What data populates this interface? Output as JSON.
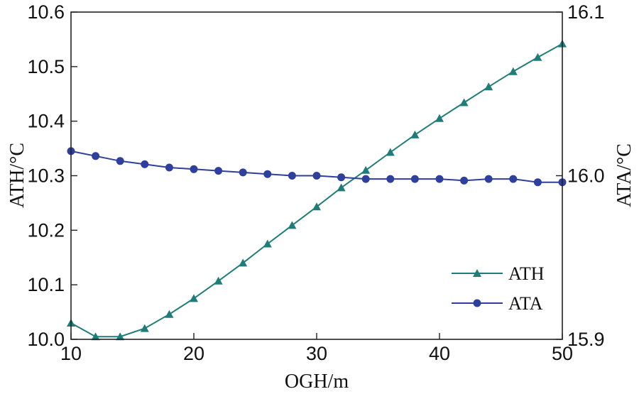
{
  "chart_data": {
    "type": "line",
    "xlabel": "OGH/m",
    "ylabel_left": "ATH/°C",
    "ylabel_right": "ATA/°C",
    "xlim": [
      10,
      50
    ],
    "ylim_left": [
      10.0,
      10.6
    ],
    "ylim_right": [
      15.9,
      16.1
    ],
    "x_ticks": [
      "10",
      "20",
      "30",
      "40",
      "50"
    ],
    "y_left_ticks": [
      "10.0",
      "10.1",
      "10.2",
      "10.3",
      "10.4",
      "10.5",
      "10.6"
    ],
    "y_right_ticks": [
      "15.9",
      "16.0",
      "16.1"
    ],
    "grid": false,
    "legend_position": "lower-right",
    "series": [
      {
        "name": "ATH",
        "axis": "left",
        "marker": "triangle",
        "color": "#1e7d78",
        "x": [
          10,
          12,
          14,
          16,
          18,
          20,
          22,
          24,
          26,
          28,
          30,
          32,
          34,
          36,
          38,
          40,
          42,
          44,
          46,
          48,
          50
        ],
        "values": [
          10.03,
          10.005,
          10.005,
          10.02,
          10.046,
          10.075,
          10.107,
          10.14,
          10.175,
          10.209,
          10.243,
          10.278,
          10.31,
          10.343,
          10.375,
          10.405,
          10.434,
          10.463,
          10.491,
          10.517,
          10.542
        ]
      },
      {
        "name": "ATA",
        "axis": "right",
        "marker": "circle",
        "color": "#2f3f9e",
        "x": [
          10,
          12,
          14,
          16,
          18,
          20,
          22,
          24,
          26,
          28,
          30,
          32,
          34,
          36,
          38,
          40,
          42,
          44,
          46,
          48,
          50
        ],
        "values": [
          16.015,
          16.012,
          16.009,
          16.007,
          16.005,
          16.004,
          16.003,
          16.002,
          16.001,
          16.0,
          16.0,
          15.999,
          15.998,
          15.998,
          15.998,
          15.998,
          15.997,
          15.998,
          15.998,
          15.996,
          15.996
        ]
      }
    ]
  }
}
